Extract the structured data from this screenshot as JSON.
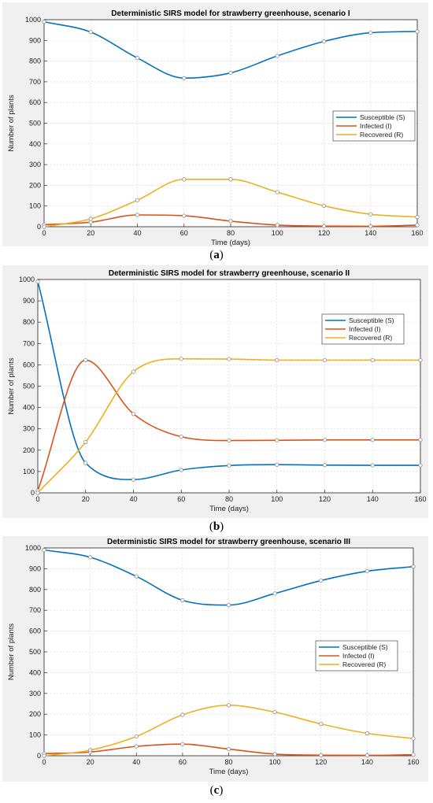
{
  "chart_data": [
    {
      "type": "line",
      "panel_label": "a",
      "title": "Deterministic SIRS model for strawberry greenhouse, scenario I",
      "xlabel": "Time (days)",
      "ylabel": "Number of plants",
      "xlim": [
        0,
        160
      ],
      "ylim": [
        0,
        1000
      ],
      "xticks": [
        0,
        20,
        40,
        60,
        80,
        100,
        120,
        140,
        160
      ],
      "yticks": [
        0,
        100,
        200,
        300,
        400,
        500,
        600,
        700,
        800,
        900,
        1000
      ],
      "grid": true,
      "legend_position": "right",
      "x": [
        0,
        20,
        40,
        60,
        80,
        100,
        120,
        140,
        160
      ],
      "series": [
        {
          "name": "Susceptible (S)",
          "color": "#0072BD",
          "values": [
            990,
            940,
            815,
            718,
            743,
            825,
            895,
            937,
            943
          ]
        },
        {
          "name": "Infected (I)",
          "color": "#D95319",
          "values": [
            10,
            22,
            57,
            53,
            27,
            8,
            3,
            2,
            8
          ]
        },
        {
          "name": "Recovered (R)",
          "color": "#EDB120",
          "values": [
            0,
            38,
            128,
            229,
            229,
            167,
            101,
            60,
            47
          ]
        }
      ]
    },
    {
      "type": "line",
      "panel_label": "b",
      "title": "Deterministic SIRS model for strawberry greenhouse, scenario II",
      "xlabel": "Time (days)",
      "ylabel": "Number of plants",
      "xlim": [
        0,
        160
      ],
      "ylim": [
        0,
        1000
      ],
      "xticks": [
        0,
        20,
        40,
        60,
        80,
        100,
        120,
        140,
        160
      ],
      "yticks": [
        0,
        100,
        200,
        300,
        400,
        500,
        600,
        700,
        800,
        900,
        1000
      ],
      "grid": true,
      "legend_position": "right",
      "x": [
        0,
        20,
        40,
        60,
        80,
        100,
        120,
        140,
        160
      ],
      "series": [
        {
          "name": "Susceptible (S)",
          "color": "#0072BD",
          "values": [
            990,
            140,
            62,
            107,
            128,
            132,
            130,
            129,
            129
          ]
        },
        {
          "name": "Infected (I)",
          "color": "#D95319",
          "values": [
            10,
            622,
            370,
            263,
            245,
            246,
            248,
            248,
            248
          ]
        },
        {
          "name": "Recovered (R)",
          "color": "#EDB120",
          "values": [
            0,
            238,
            568,
            628,
            627,
            622,
            622,
            622,
            622
          ]
        }
      ]
    },
    {
      "type": "line",
      "panel_label": "c",
      "title": "Deterministic SIRS model for strawberry greenhouse, scenario III",
      "xlabel": "Time (days)",
      "ylabel": "Number of plants",
      "xlim": [
        0,
        160
      ],
      "ylim": [
        0,
        1000
      ],
      "xticks": [
        0,
        20,
        40,
        60,
        80,
        100,
        120,
        140,
        160
      ],
      "yticks": [
        0,
        100,
        200,
        300,
        400,
        500,
        600,
        700,
        800,
        900,
        1000
      ],
      "grid": true,
      "legend_position": "right",
      "x": [
        0,
        20,
        40,
        60,
        80,
        100,
        120,
        140,
        160
      ],
      "series": [
        {
          "name": "Susceptible (S)",
          "color": "#0072BD",
          "values": [
            990,
            955,
            863,
            748,
            725,
            781,
            843,
            888,
            910
          ]
        },
        {
          "name": "Infected (I)",
          "color": "#D95319",
          "values": [
            10,
            18,
            45,
            56,
            32,
            8,
            3,
            2,
            5
          ]
        },
        {
          "name": "Recovered (R)",
          "color": "#EDB120",
          "values": [
            0,
            27,
            93,
            197,
            243,
            210,
            153,
            108,
            83
          ]
        }
      ]
    }
  ]
}
